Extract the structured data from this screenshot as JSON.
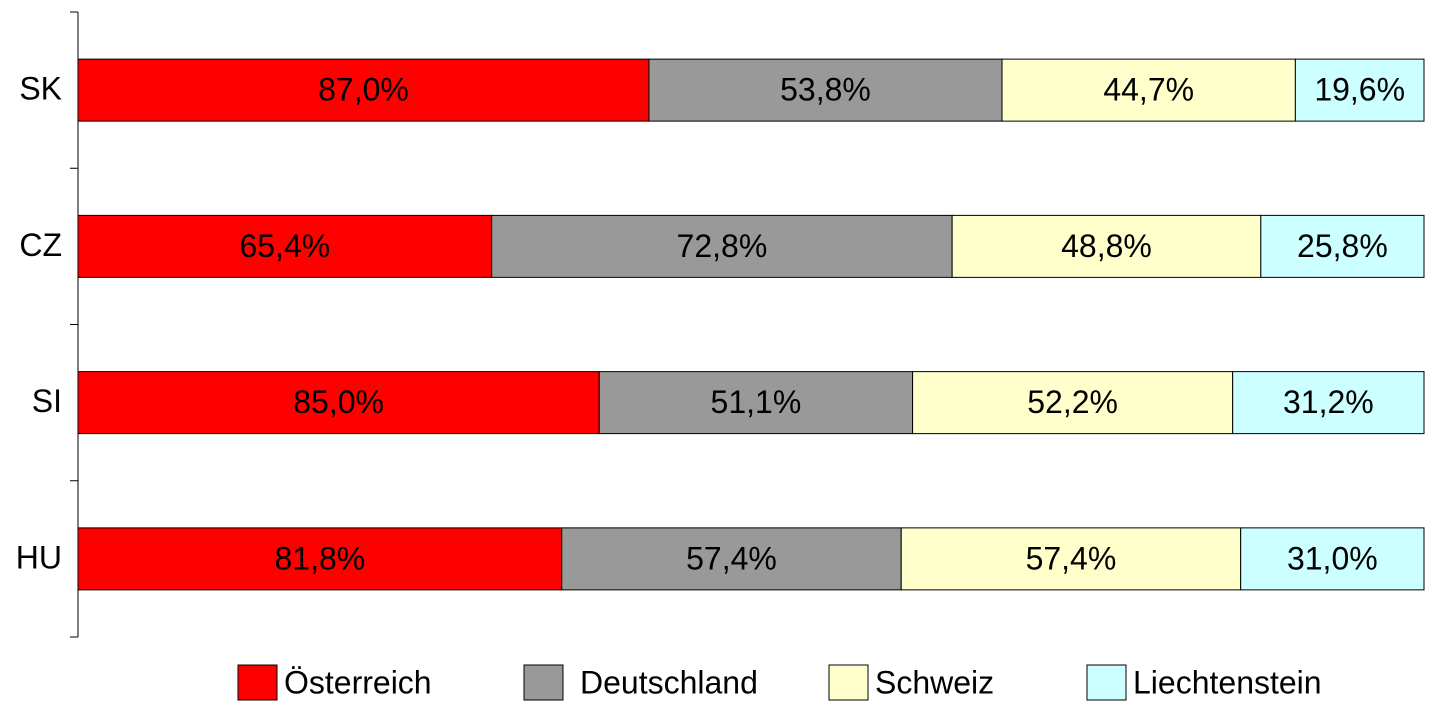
{
  "chart_data": {
    "type": "bar",
    "orientation": "horizontal",
    "stacked": "percent",
    "categories": [
      "SK",
      "CZ",
      "SI",
      "HU"
    ],
    "series": [
      {
        "name": "Österreich",
        "color": "#ff0000",
        "values": [
          87.0,
          65.4,
          85.0,
          81.8
        ],
        "value_labels": [
          "87,0%",
          "65,4%",
          "85,0%",
          "81,8%"
        ]
      },
      {
        "name": "Deutschland",
        "color": "#999999",
        "values": [
          53.8,
          72.8,
          51.1,
          57.4
        ],
        "value_labels": [
          "53,8%",
          "72,8%",
          "51,1%",
          "57,4%"
        ]
      },
      {
        "name": "Schweiz",
        "color": "#ffffcc",
        "values": [
          44.7,
          48.8,
          52.2,
          57.4
        ],
        "value_labels": [
          "44,7%",
          "48,8%",
          "52,2%",
          "57,4%"
        ]
      },
      {
        "name": "Liechtenstein",
        "color": "#ccffff",
        "values": [
          19.6,
          25.8,
          31.2,
          31.0
        ],
        "value_labels": [
          "19,6%",
          "25,8%",
          "31,2%",
          "31,0%"
        ]
      }
    ],
    "legend": "bottom"
  }
}
